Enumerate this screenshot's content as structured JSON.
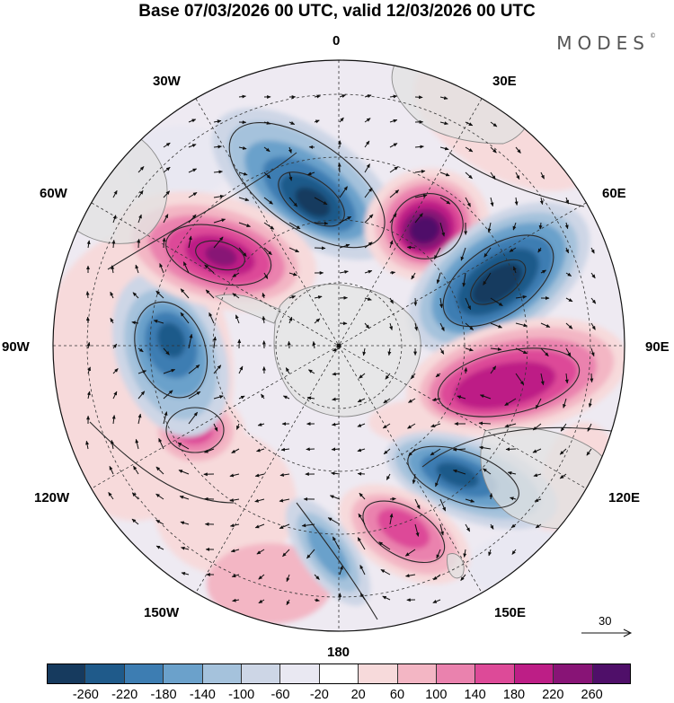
{
  "title": "Base 07/03/2026 00 UTC, valid 12/03/2026 00 UTC",
  "brand": "MODES",
  "brand_mark": "©",
  "longitude_labels": [
    "0",
    "30E",
    "60E",
    "90E",
    "120E",
    "150E",
    "180",
    "150W",
    "120W",
    "90W",
    "60W",
    "30W"
  ],
  "reference_vector": "30",
  "colorbar": {
    "ticks": [
      "-260",
      "-220",
      "-180",
      "-140",
      "-100",
      "-60",
      "-20",
      "20",
      "60",
      "100",
      "140",
      "180",
      "220",
      "260"
    ],
    "colors": [
      "#163a5e",
      "#1f5a8a",
      "#3d7db2",
      "#6ba1cb",
      "#a5c2dc",
      "#cdd6e6",
      "#e9e8f2",
      "#ffffff",
      "#f7dadb",
      "#f3b6c4",
      "#ea82ae",
      "#dd4a98",
      "#bd1e86",
      "#881476",
      "#4f0f69"
    ]
  },
  "colors": {
    "land": "#e2e2e2",
    "coast": "#8a8a8a",
    "grid": "#333333"
  }
}
